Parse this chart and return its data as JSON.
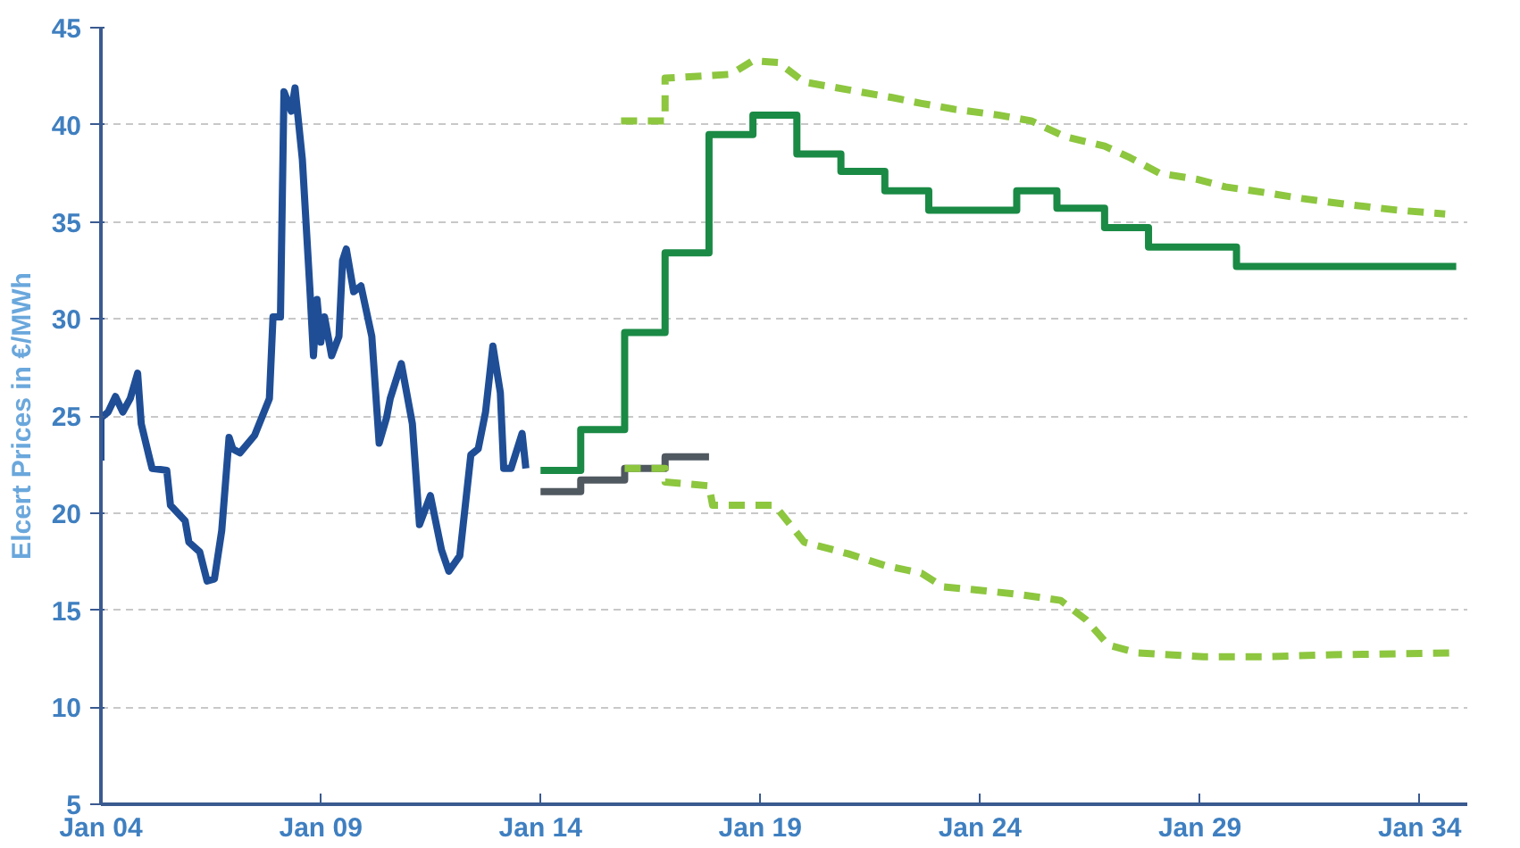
{
  "chart_data": {
    "type": "line",
    "ylabel": "Elcert Prices in €/MWh",
    "xlim": [
      "2004-01",
      "2035-02"
    ],
    "ylim": [
      5,
      45
    ],
    "xticks": [
      {
        "value": "2004-01",
        "label": "Jan 04"
      },
      {
        "value": "2009-01",
        "label": "Jan 09"
      },
      {
        "value": "2014-01",
        "label": "Jan 14"
      },
      {
        "value": "2019-01",
        "label": "Jan 19"
      },
      {
        "value": "2024-01",
        "label": "Jan 24"
      },
      {
        "value": "2029-01",
        "label": "Jan 29"
      },
      {
        "value": "2034-01",
        "label": "Jan 34"
      }
    ],
    "yticks": [
      5,
      10,
      15,
      20,
      25,
      30,
      35,
      40,
      45
    ],
    "grid": "y",
    "series": [
      {
        "color": "#1f4e96",
        "line_style": "solid",
        "x": [
          "2004-01",
          "2004-01",
          "2004-03",
          "2004-05",
          "2004-07",
          "2004-09",
          "2004-11",
          "2004-12",
          "2005-02",
          "2005-03",
          "2005-07",
          "2005-08",
          "2005-12",
          "2006-01",
          "2006-04",
          "2006-06",
          "2006-08",
          "2006-10",
          "2006-12",
          "2007-01",
          "2007-03",
          "2007-07",
          "2007-11",
          "2007-12",
          "2008-02",
          "2008-03",
          "2008-05",
          "2008-06",
          "2008-08",
          "2008-10",
          "2008-11",
          "2008-12",
          "2009-01",
          "2009-02",
          "2009-04",
          "2009-06",
          "2009-07",
          "2009-08",
          "2009-10",
          "2009-12",
          "2010-03",
          "2010-05",
          "2010-07",
          "2010-08",
          "2010-11",
          "2011-02",
          "2011-04",
          "2011-07",
          "2011-10",
          "2011-12",
          "2012-03",
          "2012-06",
          "2012-08",
          "2012-10",
          "2012-12",
          "2013-02",
          "2013-03",
          "2013-05",
          "2013-08",
          "2013-09"
        ],
        "values": [
          22.7,
          24.9,
          25.2,
          26.0,
          25.2,
          25.9,
          27.2,
          24.6,
          23.0,
          22.3,
          22.2,
          20.4,
          19.6,
          18.5,
          18.0,
          16.5,
          16.6,
          19.1,
          23.9,
          23.3,
          23.1,
          24.0,
          25.9,
          30.1,
          30.1,
          41.7,
          40.7,
          41.9,
          38.2,
          31.7,
          28.1,
          31.0,
          28.8,
          30.1,
          28.1,
          29.1,
          33.0,
          33.6,
          31.4,
          31.7,
          29.1,
          23.6,
          24.9,
          25.9,
          27.7,
          24.6,
          19.4,
          20.9,
          18.1,
          17.0,
          17.8,
          23.0,
          23.3,
          25.2,
          28.6,
          26.2,
          22.3,
          22.3,
          24.1,
          22.3
        ]
      },
      {
        "type": "step",
        "color": "#1a8a45",
        "line_style": "solid",
        "x": [
          "2014-01",
          "2014-12",
          "2015-12",
          "2016-11",
          "2017-11",
          "2018-11",
          "2019-11",
          "2020-11",
          "2021-11",
          "2022-11",
          "2024-11",
          "2025-10",
          "2026-11",
          "2027-11",
          "2029-11",
          "2034-11"
        ],
        "values": [
          22.2,
          24.3,
          29.3,
          33.4,
          39.5,
          40.5,
          38.5,
          37.6,
          36.6,
          35.6,
          36.6,
          35.7,
          34.7,
          33.7,
          32.7,
          32.7
        ]
      },
      {
        "type": "step",
        "color": "#505860",
        "line_style": "solid",
        "x": [
          "2014-01",
          "2014-12",
          "2015-12",
          "2016-11",
          "2017-11"
        ],
        "values": [
          21.1,
          21.7,
          22.3,
          22.9,
          22.9
        ]
      },
      {
        "color": "#8dc63f",
        "line_style": "dashed",
        "x": [
          "2015-11",
          "2016-11",
          "2016-11",
          "2018-05",
          "2018-11",
          "2019-06",
          "2020-01",
          "2021-01",
          "2022-01",
          "2022-09",
          "2023-06",
          "2024-06",
          "2025-03",
          "2025-12",
          "2026-11",
          "2027-06",
          "2028-02",
          "2028-12",
          "2029-08",
          "2030-07",
          "2031-05",
          "2032-05",
          "2033-07",
          "2034-08"
        ],
        "values": [
          40.2,
          40.2,
          42.4,
          42.6,
          43.3,
          43.2,
          42.2,
          41.8,
          41.4,
          41.1,
          40.8,
          40.5,
          40.2,
          39.4,
          38.9,
          38.3,
          37.5,
          37.2,
          36.8,
          36.5,
          36.2,
          35.9,
          35.6,
          35.4
        ]
      },
      {
        "color": "#8dc63f",
        "line_style": "dashed",
        "x": [
          "2015-12",
          "2016-11",
          "2016-11",
          "2017-11",
          "2017-12",
          "2019-05",
          "2020-01",
          "2021-01",
          "2021-11",
          "2022-09",
          "2023-03",
          "2024-02",
          "2024-12",
          "2025-11",
          "2026-06",
          "2026-12",
          "2027-08",
          "2029-02",
          "2030-07",
          "2032-01",
          "2034-11"
        ],
        "values": [
          22.3,
          22.3,
          21.6,
          21.4,
          20.4,
          20.4,
          18.5,
          17.9,
          17.3,
          16.9,
          16.2,
          16.0,
          15.8,
          15.5,
          14.5,
          13.2,
          12.8,
          12.6,
          12.6,
          12.7,
          12.8
        ]
      }
    ]
  }
}
